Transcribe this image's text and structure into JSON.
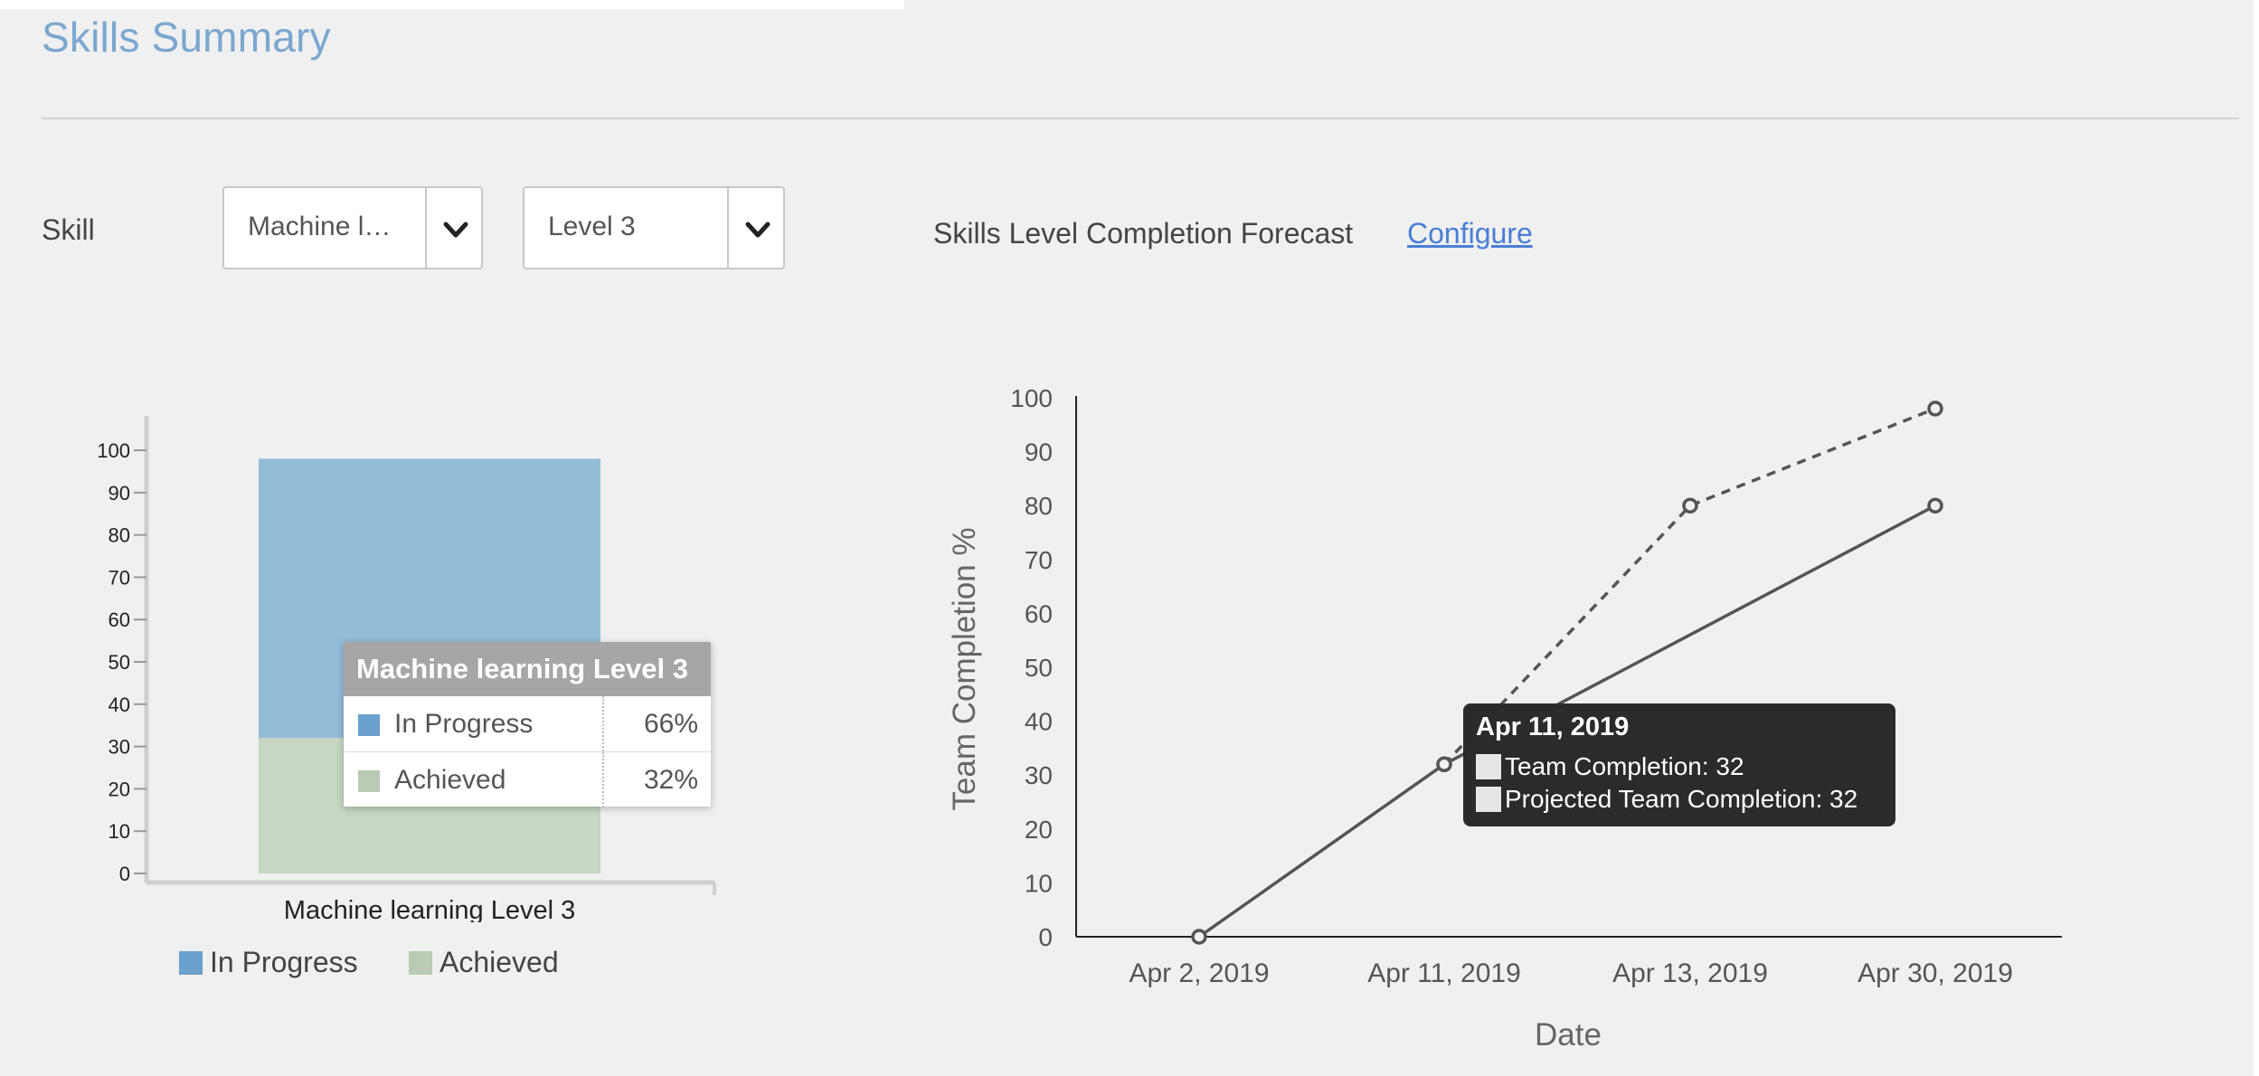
{
  "page": {
    "title": "Skills Summary"
  },
  "filters": {
    "skill_label": "Skill",
    "skill_select": {
      "value": "Machine l…",
      "icon": "chevron-down-icon"
    },
    "level_select": {
      "value": "Level 3",
      "icon": "chevron-down-icon"
    }
  },
  "forecast": {
    "title": "Skills Level Completion Forecast",
    "configure_link": "Configure"
  },
  "colors": {
    "in_progress": "#94bcd8",
    "achieved": "#c8d6c4",
    "in_progress_legend": "#6aa0cc",
    "achieved_legend": "#b9cbb4",
    "line": "#555555"
  },
  "chart_data": [
    {
      "type": "bar",
      "stacked": true,
      "categories": [
        "Machine learning Level 3"
      ],
      "series": [
        {
          "name": "In Progress",
          "values": [
            66
          ]
        },
        {
          "name": "Achieved",
          "values": [
            32
          ]
        }
      ],
      "yticks": [
        "0",
        "10",
        "20",
        "30",
        "40",
        "50",
        "60",
        "70",
        "80",
        "90",
        "100"
      ],
      "ylim": [
        0,
        100
      ],
      "legend": "bottom",
      "tooltip": {
        "title": "Machine learning Level 3",
        "rows": [
          {
            "label": "In Progress",
            "value": "66%"
          },
          {
            "label": "Achieved",
            "value": "32%"
          }
        ]
      }
    },
    {
      "type": "line",
      "x": [
        "Apr 2, 2019",
        "Apr 11, 2019",
        "Apr 13, 2019",
        "Apr 30, 2019"
      ],
      "series": [
        {
          "name": "Team Completion",
          "style": "solid",
          "values": [
            0,
            32,
            null,
            80
          ]
        },
        {
          "name": "Projected Team Completion",
          "style": "dashed",
          "values": [
            null,
            32,
            80,
            98
          ]
        }
      ],
      "yticks": [
        "0",
        "10",
        "20",
        "30",
        "40",
        "50",
        "60",
        "70",
        "80",
        "90",
        "100"
      ],
      "ylim": [
        0,
        100
      ],
      "xlabel": "Date",
      "ylabel": "Team Completion %",
      "tooltip": {
        "date": "Apr 11, 2019",
        "rows": [
          "Team Completion: 32",
          "Projected Team Completion: 32"
        ]
      }
    }
  ]
}
